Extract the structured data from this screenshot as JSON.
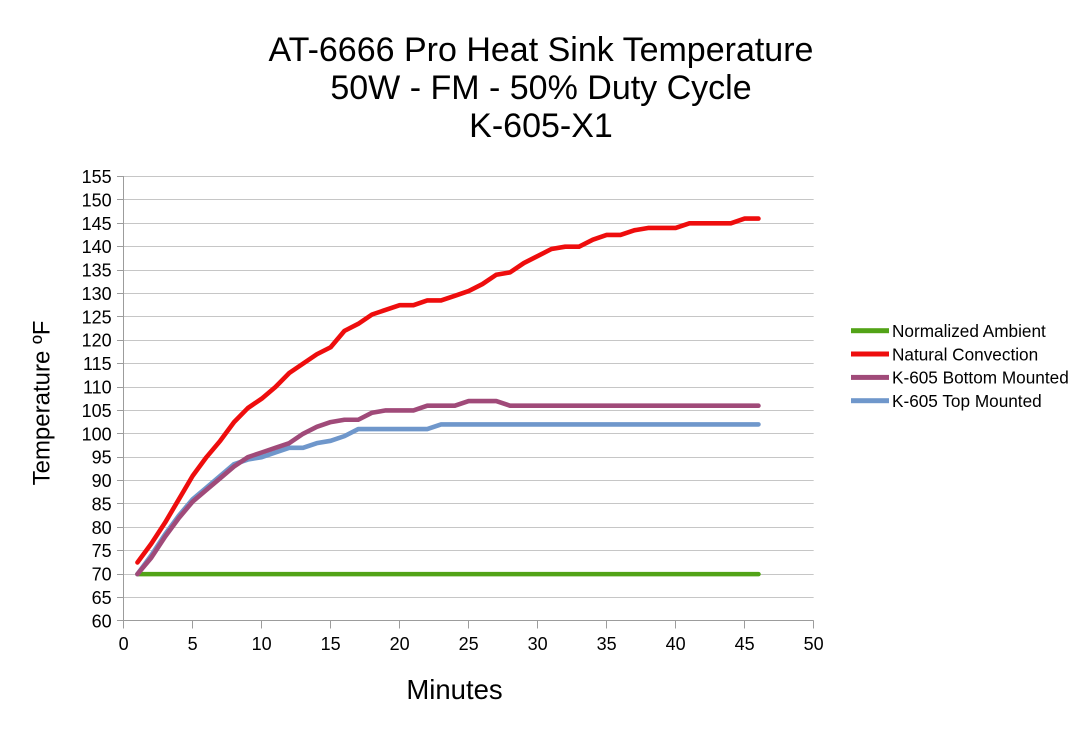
{
  "chart_data": {
    "type": "line",
    "title_lines": [
      "AT-6666 Pro Heat Sink Temperature",
      "50W - FM - 50% Duty Cycle",
      "K-605-X1"
    ],
    "xlabel": "Minutes",
    "ylabel": "Temperature ºF",
    "xlim": [
      0,
      50
    ],
    "ylim": [
      60,
      155
    ],
    "xtick_step": 5,
    "ytick_step": 5,
    "grid": "horizontal",
    "legend_position": "right",
    "x": [
      1,
      2,
      3,
      4,
      5,
      6,
      7,
      8,
      9,
      10,
      11,
      12,
      13,
      14,
      15,
      16,
      17,
      18,
      19,
      20,
      21,
      22,
      23,
      24,
      25,
      26,
      27,
      28,
      29,
      30,
      31,
      32,
      33,
      34,
      35,
      36,
      37,
      38,
      39,
      40,
      41,
      42,
      43,
      44,
      45,
      46
    ],
    "series": [
      {
        "name": "Normalized Ambient",
        "color": "#52A317",
        "values": [
          70,
          70,
          70,
          70,
          70,
          70,
          70,
          70,
          70,
          70,
          70,
          70,
          70,
          70,
          70,
          70,
          70,
          70,
          70,
          70,
          70,
          70,
          70,
          70,
          70,
          70,
          70,
          70,
          70,
          70,
          70,
          70,
          70,
          70,
          70,
          70,
          70,
          70,
          70,
          70,
          70,
          70,
          70,
          70,
          70,
          70
        ]
      },
      {
        "name": "Natural Convection",
        "color": "#EE0D0D",
        "values": [
          72.5,
          76.5,
          81,
          86,
          91,
          95,
          98.5,
          102.5,
          105.5,
          107.5,
          110,
          113,
          115,
          117,
          118.5,
          122,
          123.5,
          125.5,
          126.5,
          127.5,
          127.5,
          128.5,
          128.5,
          129.5,
          130.5,
          132,
          134,
          134.5,
          136.5,
          138,
          139.5,
          140,
          140,
          141.5,
          142.5,
          142.5,
          143.5,
          144,
          144,
          144,
          145,
          145,
          145,
          145,
          146,
          146
        ]
      },
      {
        "name": "K-605 Bottom Mounted",
        "color": "#A04A79",
        "values": [
          70,
          73.5,
          78,
          82,
          85.5,
          88,
          90.5,
          93,
          95,
          96,
          97,
          98,
          100,
          101.5,
          102.5,
          103,
          103,
          104.5,
          105,
          105,
          105,
          106,
          106,
          106,
          107,
          107,
          107,
          106,
          106,
          106,
          106,
          106,
          106,
          106,
          106,
          106,
          106,
          106,
          106,
          106,
          106,
          106,
          106,
          106,
          106,
          106
        ]
      },
      {
        "name": "K-605 Top Mounted",
        "color": "#6F97CB",
        "values": [
          70,
          74,
          78.5,
          82.5,
          86,
          88.5,
          91,
          93.5,
          94.5,
          95,
          96,
          97,
          97,
          98,
          98.5,
          99.5,
          101,
          101,
          101,
          101,
          101,
          101,
          102,
          102,
          102,
          102,
          102,
          102,
          102,
          102,
          102,
          102,
          102,
          102,
          102,
          102,
          102,
          102,
          102,
          102,
          102,
          102,
          102,
          102,
          102,
          102
        ]
      }
    ],
    "colors": {
      "gridline": "#C6C6C6",
      "axis": "#9C9C9C",
      "text": "#000000",
      "background": "#FFFFFF"
    }
  }
}
